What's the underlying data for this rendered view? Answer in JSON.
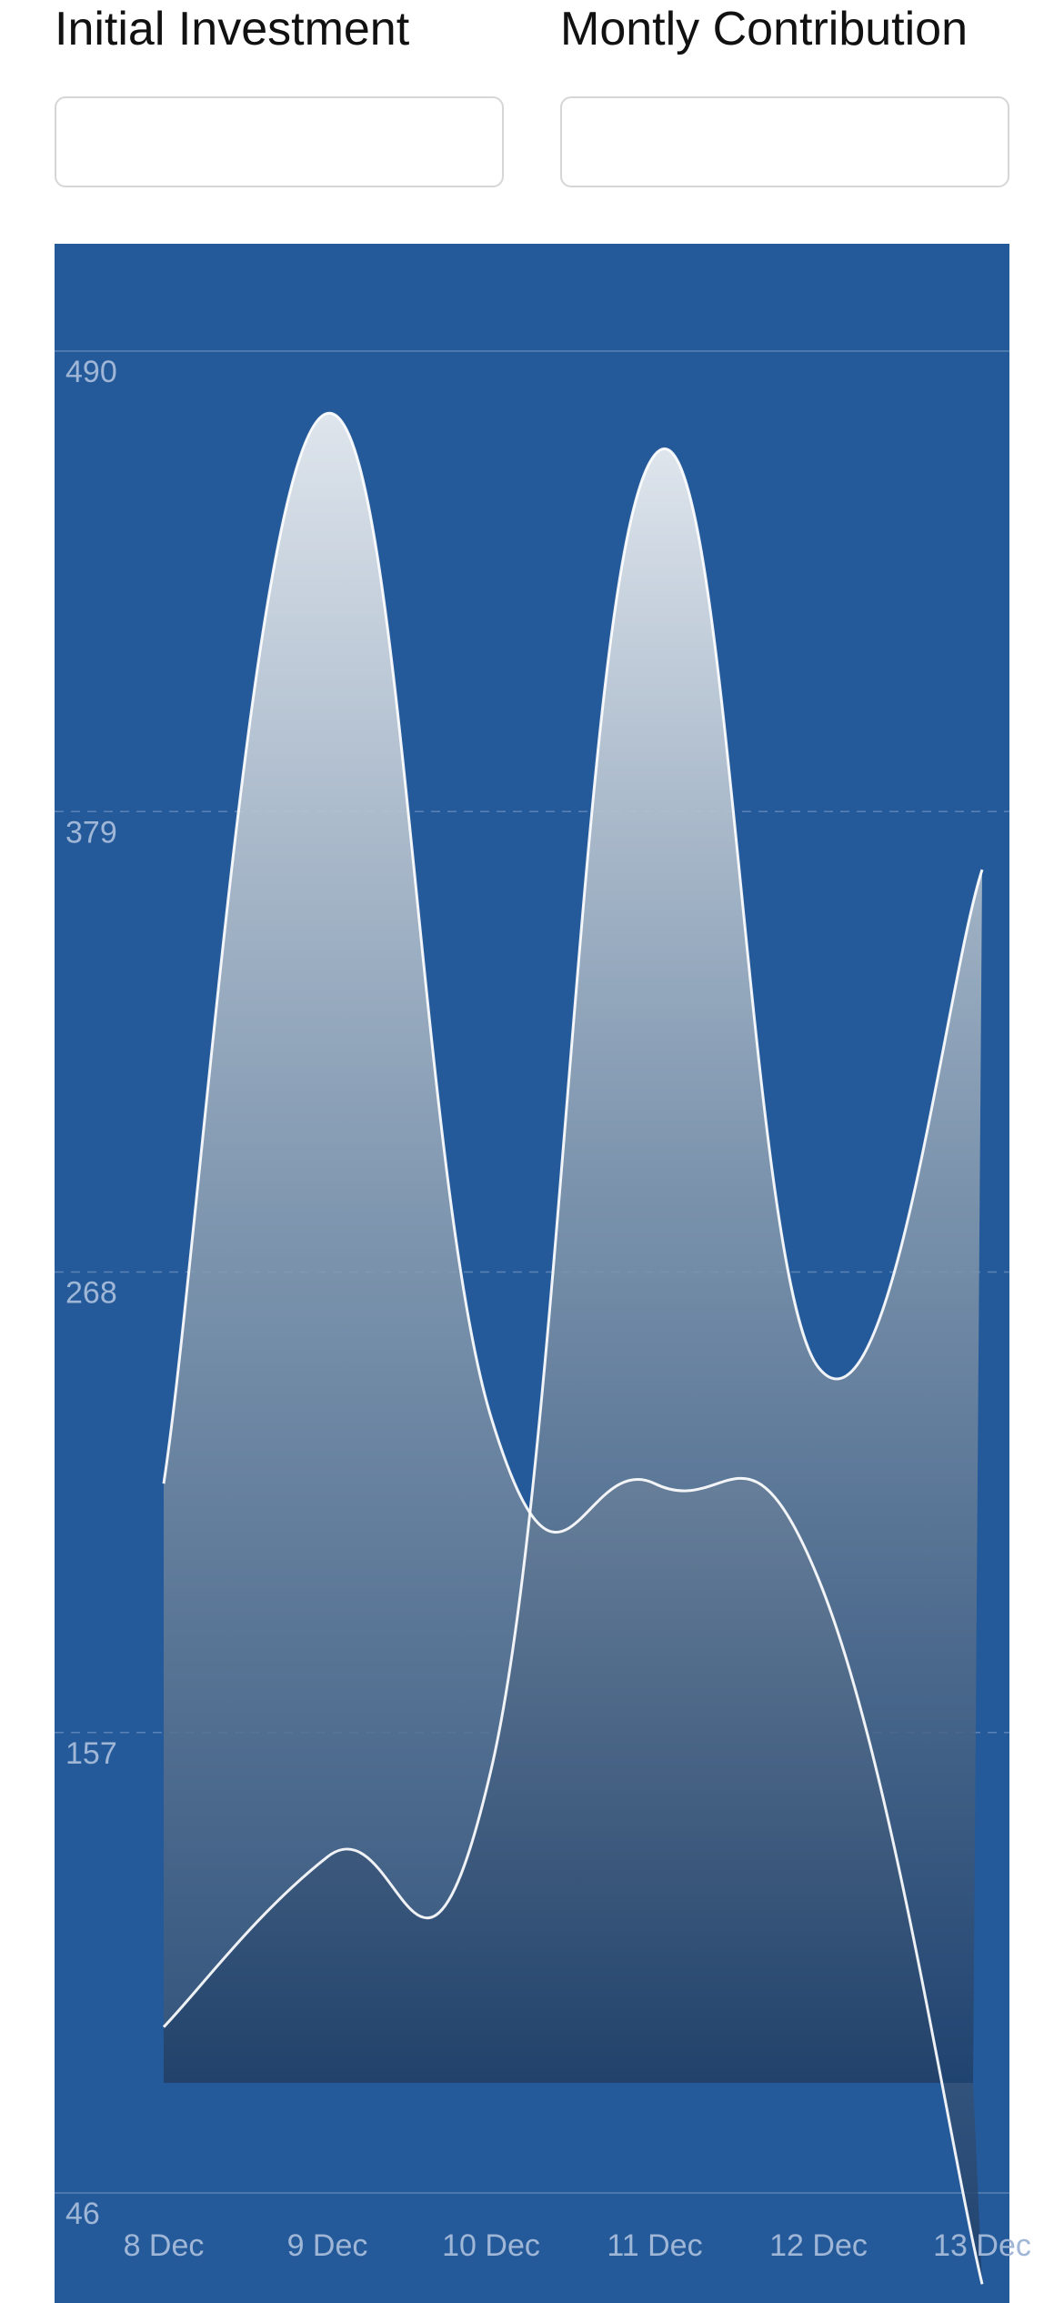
{
  "form": {
    "initial_investment": {
      "label": "Initial Investment",
      "value": "",
      "placeholder": ""
    },
    "monthly_contribution": {
      "label": "Montly Contribution",
      "value": "",
      "placeholder": ""
    }
  },
  "colors": {
    "panel_background": "#255a9a",
    "line": "#ffffff",
    "tick_label": "#9fb6d6"
  },
  "chart_data": {
    "type": "area",
    "categories": [
      "8 Dec",
      "9 Dec",
      "10 Dec",
      "11 Dec",
      "12 Dec",
      "13 Dec"
    ],
    "y_ticks": [
      490,
      379,
      268,
      157,
      46
    ],
    "ylim": [
      46,
      490
    ],
    "grid": true,
    "series": [
      {
        "values": [
          217,
          475,
          233,
          217,
          194,
          24
        ]
      },
      {
        "values": [
          86,
          127,
          148,
          465,
          245,
          365
        ]
      }
    ]
  }
}
